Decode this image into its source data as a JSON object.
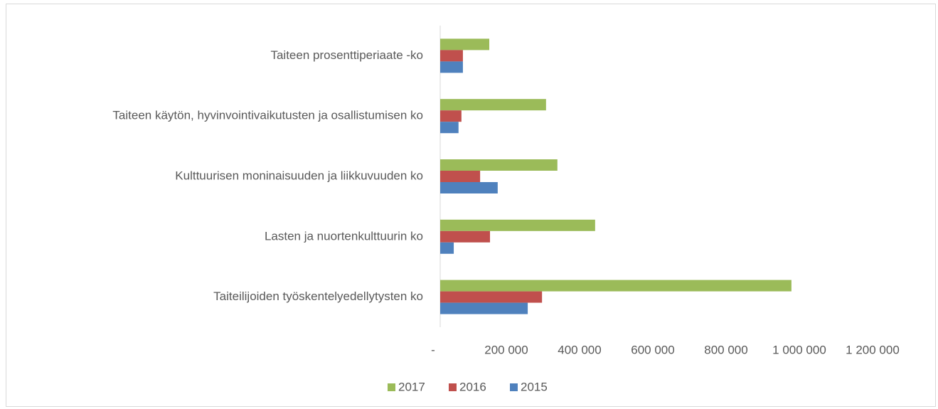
{
  "chart_data": {
    "type": "bar",
    "orientation": "horizontal",
    "categories": [
      "Taiteen prosenttiperiaate -ko",
      "Taiteen käytön, hyvinvointivaikutusten ja osallistumisen ko",
      "Kulttuurisen moninaisuuden ja liikkuvuuden ko",
      "Lasten ja nuortenkulttuurin ko",
      "Taiteilijoiden työskentelyedellytysten ko"
    ],
    "series": [
      {
        "name": "2017",
        "color": "#9bbb59",
        "values": [
          134000,
          289000,
          320000,
          423000,
          959000
        ]
      },
      {
        "name": "2016",
        "color": "#c0504d",
        "values": [
          62000,
          58000,
          109000,
          136000,
          278000
        ]
      },
      {
        "name": "2015",
        "color": "#4f81bd",
        "values": [
          62000,
          50000,
          157000,
          37000,
          239000
        ]
      }
    ],
    "xlim": [
      0,
      1200000
    ],
    "xticks": [
      {
        "value": 0,
        "label": "-"
      },
      {
        "value": 200000,
        "label": "200 000"
      },
      {
        "value": 400000,
        "label": "400 000"
      },
      {
        "value": 600000,
        "label": "600 000"
      },
      {
        "value": 800000,
        "label": "800 000"
      },
      {
        "value": 1000000,
        "label": "1 000 000"
      },
      {
        "value": 1200000,
        "label": "1 200 000"
      }
    ],
    "legend": "bottom"
  }
}
